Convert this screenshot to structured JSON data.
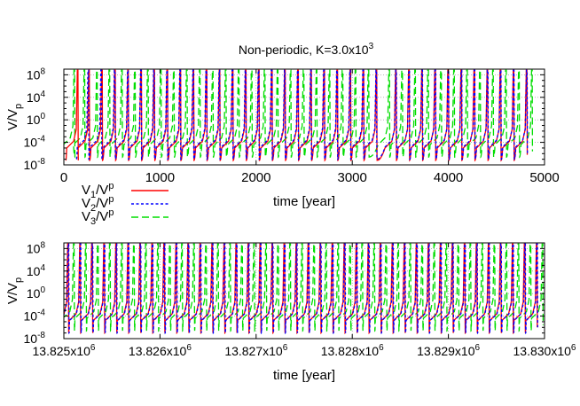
{
  "title": "Non-periodic, K=3.0x10",
  "title_sup": "3",
  "colors": {
    "v1": "#ff0000",
    "v2": "#0000ff",
    "v3": "#00dd00",
    "grid": "#8c8c8c",
    "axis": "#000000"
  },
  "legend": {
    "items": [
      {
        "base": "V",
        "sub1": "1",
        "mid": "/V",
        "sub2": "p",
        "color": "#ff0000",
        "dash": "solid"
      },
      {
        "base": "V",
        "sub1": "2",
        "mid": "/V",
        "sub2": "p",
        "color": "#0000ff",
        "dash": "dotted"
      },
      {
        "base": "V",
        "sub1": "3",
        "mid": "/V",
        "sub2": "p",
        "color": "#00dd00",
        "dash": "dashed"
      }
    ]
  },
  "chart_data": [
    {
      "type": "line",
      "title": "Non-periodic, K=3.0x10^3",
      "xlabel": "time [year]",
      "ylabel": "V/V_p",
      "xlim": [
        0,
        5000
      ],
      "ylim_log10": [
        -8,
        9
      ],
      "yscale": "log",
      "grid": true,
      "legend": "below-left",
      "xticks": [
        "0",
        "1000",
        "2000",
        "3000",
        "4000",
        "5000"
      ],
      "xtick_values": [
        0,
        1000,
        2000,
        3000,
        4000,
        5000
      ],
      "yticks": [
        {
          "base": "10",
          "exp": "8",
          "log10": 8
        },
        {
          "base": "10",
          "exp": "4",
          "log10": 4
        },
        {
          "base": "10",
          "exp": "0",
          "log10": 0
        },
        {
          "base": "10",
          "exp": "-4",
          "log10": -4
        },
        {
          "base": "10",
          "exp": "-8",
          "log10": -8
        }
      ],
      "series": [
        {
          "name": "V1/Vp",
          "peak_log10": 8.8,
          "min_log10": -7.2,
          "event_times": [
            140,
            258,
            392,
            528,
            664,
            800,
            936,
            1072,
            1208,
            1344,
            1480,
            1616,
            1752,
            1888,
            2024,
            2160,
            2296,
            2432,
            2568,
            2704,
            2840,
            2976,
            3112,
            3248,
            3450,
            3586,
            3722,
            3858,
            3994,
            4130,
            4266,
            4402,
            4538,
            4674,
            4810
          ]
        },
        {
          "name": "V2/Vp",
          "peak_log10": 8.8,
          "min_log10": -7.0,
          "event_times": [
            250,
            385,
            525,
            662,
            798,
            934,
            1070,
            1206,
            1342,
            1478,
            1614,
            1750,
            1886,
            2022,
            2158,
            2294,
            2430,
            2566,
            2702,
            2838,
            2974,
            3110,
            3246,
            3452,
            3588,
            3724,
            3860,
            3996,
            4132,
            4268,
            4404,
            4540,
            4676,
            4812
          ]
        },
        {
          "name": "V3/Vp",
          "peak_log10": 8.8,
          "min_log10": -6.6,
          "event_times": [
            105,
            210,
            340,
            470,
            600,
            735,
            870,
            1005,
            1140,
            1275,
            1410,
            1545,
            1680,
            1815,
            1950,
            2085,
            2220,
            2355,
            2490,
            2625,
            2760,
            2895,
            3030,
            3165,
            3380,
            3515,
            3650,
            3785,
            3920,
            4055,
            4190,
            4325,
            4460,
            4595,
            4730,
            4865
          ]
        }
      ]
    },
    {
      "type": "line",
      "xlabel": "time [year]",
      "ylabel": "V/V_p",
      "xlim": [
        13825000,
        13830000
      ],
      "ylim_log10": [
        -8,
        9
      ],
      "yscale": "log",
      "grid": true,
      "xticks": [
        {
          "base": "13.825x10",
          "exp": "6"
        },
        {
          "base": "13.826x10",
          "exp": "6"
        },
        {
          "base": "13.827x10",
          "exp": "6"
        },
        {
          "base": "13.828x10",
          "exp": "6"
        },
        {
          "base": "13.829x10",
          "exp": "6"
        },
        {
          "base": "13.830x10",
          "exp": "6"
        }
      ],
      "xtick_values": [
        13825000,
        13826000,
        13827000,
        13828000,
        13829000,
        13830000
      ],
      "yticks": [
        {
          "base": "10",
          "exp": "8",
          "log10": 8
        },
        {
          "base": "10",
          "exp": "4",
          "log10": 4
        },
        {
          "base": "10",
          "exp": "0",
          "log10": 0
        },
        {
          "base": "10",
          "exp": "-4",
          "log10": -4
        },
        {
          "base": "10",
          "exp": "-8",
          "log10": -8
        }
      ],
      "series": [
        {
          "name": "V1/Vp",
          "peak_log10": 8.8,
          "min_log10": -7.0,
          "event_times": [
            13825040,
            13825165,
            13825290,
            13825415,
            13825540,
            13825665,
            13825790,
            13825915,
            13826040,
            13826165,
            13826290,
            13826415,
            13826540,
            13826665,
            13826790,
            13826915,
            13827040,
            13827165,
            13827290,
            13827415,
            13827540,
            13827665,
            13827790,
            13827915,
            13828040,
            13828165,
            13828290,
            13828415,
            13828540,
            13828665,
            13828790,
            13828915,
            13829040,
            13829165,
            13829290,
            13829415,
            13829540,
            13829665,
            13829790,
            13829915
          ]
        },
        {
          "name": "V2/Vp",
          "peak_log10": 8.8,
          "min_log10": -7.0,
          "event_times": [
            13825044,
            13825169,
            13825294,
            13825419,
            13825544,
            13825669,
            13825794,
            13825919,
            13826044,
            13826169,
            13826294,
            13826419,
            13826544,
            13826669,
            13826794,
            13826919,
            13827044,
            13827169,
            13827294,
            13827419,
            13827544,
            13827669,
            13827794,
            13827919,
            13828044,
            13828169,
            13828294,
            13828419,
            13828544,
            13828669,
            13828794,
            13828919,
            13829044,
            13829169,
            13829294,
            13829419,
            13829544,
            13829669,
            13829794,
            13829919
          ]
        },
        {
          "name": "V3/Vp",
          "peak_log10": 8.8,
          "min_log10": -6.6,
          "event_times": [
            13825100,
            13825225,
            13825350,
            13825475,
            13825600,
            13825725,
            13825850,
            13825975,
            13826100,
            13826225,
            13826350,
            13826475,
            13826600,
            13826725,
            13826850,
            13826975,
            13827100,
            13827225,
            13827350,
            13827475,
            13827600,
            13827725,
            13827850,
            13827975,
            13828100,
            13828225,
            13828350,
            13828475,
            13828600,
            13828725,
            13828850,
            13828975,
            13829100,
            13829225,
            13829350,
            13829475,
            13829600,
            13829725,
            13829850,
            13829975
          ]
        }
      ]
    }
  ]
}
